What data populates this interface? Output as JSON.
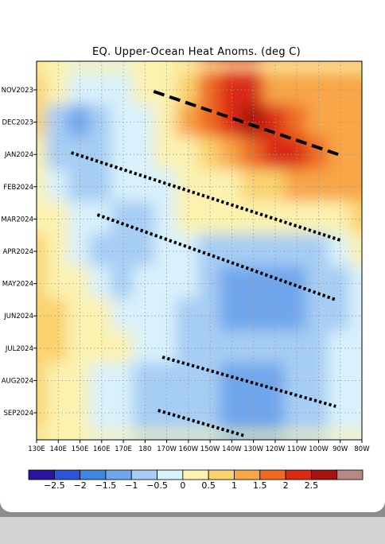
{
  "chart_data": {
    "type": "heatmap",
    "title": "EQ. Upper-Ocean Heat Anoms. (deg C)",
    "x_ticks": [
      "130E",
      "140E",
      "150E",
      "160E",
      "170E",
      "180",
      "170W",
      "160W",
      "150W",
      "140W",
      "130W",
      "120W",
      "110W",
      "100W",
      "90W",
      "80W"
    ],
    "y_ticks": [
      "NOV2023",
      "DEC2023",
      "JAN2024",
      "FEB2024",
      "MAR2024",
      "APR2024",
      "MAY2024",
      "JUN2024",
      "JUL2024",
      "AUG2024",
      "SEP2024"
    ],
    "xlim": [
      "130E",
      "80W"
    ],
    "grid": true,
    "colorbar": {
      "levels": [
        -2.5,
        -2,
        -1.5,
        -1,
        -0.5,
        0,
        0.5,
        1,
        1.5,
        2,
        2.5
      ],
      "level_labels": [
        "−2.5",
        "−2",
        "−1.5",
        "−1",
        "−0.5",
        "0",
        "0.5",
        "1",
        "1.5",
        "2",
        "2.5"
      ],
      "colors": [
        "#2b12a0",
        "#2a55d6",
        "#3f86e0",
        "#6fa6ec",
        "#a6cdf4",
        "#d9f1fb",
        "#fbf2b0",
        "#fbd36e",
        "#f8a646",
        "#f06b22",
        "#d92a12",
        "#a81210",
        "#b68a82"
      ]
    },
    "field": [
      {
        "month": "NOV2023",
        "values": [
          0.5,
          0.3,
          -0.3,
          -0.3,
          -0.3,
          0.3,
          0.3,
          0.8,
          1.6,
          2.3,
          2.0,
          1.4,
          1.3,
          1.1,
          1.0,
          1.0
        ]
      },
      {
        "month": "DEC2023",
        "values": [
          0.5,
          -0.7,
          -1.1,
          -1.0,
          -0.5,
          -0.3,
          0.3,
          1.0,
          1.8,
          2.4,
          2.6,
          2.2,
          1.6,
          1.3,
          1.1,
          1.0
        ]
      },
      {
        "month": "JAN2024",
        "values": [
          0.4,
          -0.7,
          -0.9,
          -0.8,
          -0.4,
          -0.3,
          0.0,
          0.4,
          0.9,
          1.4,
          1.9,
          2.2,
          2.0,
          1.6,
          1.3,
          1.2
        ]
      },
      {
        "month": "FEB2024",
        "values": [
          0.4,
          -0.2,
          -0.6,
          -0.6,
          -0.3,
          -0.4,
          -0.3,
          0.0,
          0.3,
          0.4,
          0.6,
          0.9,
          1.2,
          1.2,
          1.1,
          1.4
        ]
      },
      {
        "month": "MAR2024",
        "values": [
          0.4,
          0.2,
          -0.4,
          -0.5,
          -0.7,
          -0.6,
          -0.3,
          0.0,
          0.1,
          0.1,
          0.2,
          0.1,
          0.1,
          0.3,
          0.4,
          0.6
        ]
      },
      {
        "month": "APR2024",
        "values": [
          0.5,
          0.3,
          -0.4,
          -0.9,
          -0.9,
          -0.7,
          -0.5,
          -0.4,
          -0.6,
          -0.8,
          -0.9,
          -1.0,
          -0.8,
          -0.6,
          -0.2,
          0.2
        ]
      },
      {
        "month": "MAY2024",
        "values": [
          0.6,
          0.4,
          0.2,
          -0.3,
          -0.6,
          -0.4,
          -0.3,
          -0.5,
          -1.0,
          -1.2,
          -1.3,
          -1.4,
          -1.2,
          -0.9,
          -0.6,
          -0.2
        ]
      },
      {
        "month": "JUN2024",
        "values": [
          0.6,
          0.5,
          0.3,
          0.2,
          -0.1,
          -0.3,
          -0.3,
          -0.6,
          -0.9,
          -1.2,
          -1.3,
          -1.3,
          -1.1,
          -0.9,
          -0.6,
          -0.3
        ]
      },
      {
        "month": "JUL2024",
        "values": [
          0.5,
          0.5,
          0.4,
          0.3,
          0.1,
          -0.3,
          -0.4,
          -0.6,
          -0.8,
          -0.9,
          -0.9,
          -0.8,
          -0.7,
          -0.6,
          -0.4,
          -0.3
        ]
      },
      {
        "month": "AUG2024",
        "values": [
          0.5,
          0.4,
          0.1,
          -0.1,
          -0.3,
          -0.6,
          -0.8,
          -0.9,
          -1.0,
          -1.1,
          -1.3,
          -1.2,
          -0.9,
          -0.7,
          -0.5,
          -0.3
        ]
      },
      {
        "month": "SEP2024",
        "values": [
          0.6,
          0.3,
          0.0,
          -0.2,
          -0.4,
          -0.6,
          -0.7,
          -0.9,
          -1.0,
          -1.2,
          -1.2,
          -1.1,
          -0.9,
          -0.7,
          -0.5,
          -0.4
        ]
      }
    ],
    "annotations": [
      {
        "style": "dashed",
        "from": [
          "176W",
          "NOV2023"
        ],
        "to": [
          "90W",
          "JAN2024"
        ]
      },
      {
        "style": "dotted",
        "from": [
          "146E",
          "JAN2024"
        ],
        "to": [
          "90W",
          "APR2024"
        ]
      },
      {
        "style": "dotted",
        "from": [
          "158E",
          "MAR2024"
        ],
        "to": [
          "92W",
          "JUN2024"
        ]
      },
      {
        "style": "dotted",
        "from": [
          "172W",
          "AUG2024"
        ],
        "to": [
          "92W",
          "SEP2024"
        ]
      },
      {
        "style": "dotted",
        "from": [
          "174W",
          "SEP2024"
        ],
        "to": [
          "134W",
          "SEP2024"
        ]
      }
    ]
  }
}
